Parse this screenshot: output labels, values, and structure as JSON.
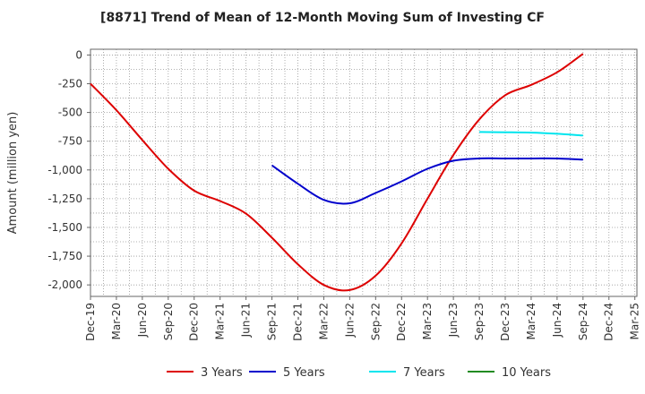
{
  "chart_data": {
    "type": "line",
    "title": "[8871]  Trend of Mean of 12-Month Moving Sum of Investing CF",
    "xlabel": "",
    "ylabel": "Amount (million yen)",
    "ylim": [
      -2100,
      50
    ],
    "y_ticks": [
      0,
      -250,
      -500,
      -750,
      -1000,
      -1250,
      -1500,
      -1750,
      -2000
    ],
    "y_tick_labels": [
      "0",
      "-250",
      "-500",
      "-750",
      "-1,000",
      "-1,250",
      "-1,500",
      "-1,750",
      "-2,000"
    ],
    "x_ticks": [
      "Dec-19",
      "Mar-20",
      "Jun-20",
      "Sep-20",
      "Dec-20",
      "Mar-21",
      "Jun-21",
      "Sep-21",
      "Dec-21",
      "Mar-22",
      "Jun-22",
      "Sep-22",
      "Dec-22",
      "Mar-23",
      "Jun-23",
      "Sep-23",
      "Dec-23",
      "Mar-24",
      "Jun-24",
      "Sep-24",
      "Dec-24",
      "Mar-25"
    ],
    "grid": true,
    "legend_position": "bottom",
    "series": [
      {
        "name": "3 Years",
        "color": "#dd0000",
        "x": [
          0,
          1,
          2,
          3,
          4,
          5,
          6,
          7,
          8,
          9,
          10,
          11,
          12,
          13,
          14,
          15,
          16,
          17,
          18,
          19
        ],
        "values": [
          -250,
          -480,
          -740,
          -990,
          -1180,
          -1270,
          -1380,
          -1590,
          -1820,
          -2000,
          -2045,
          -1920,
          -1640,
          -1250,
          -870,
          -560,
          -350,
          -260,
          -150,
          10
        ]
      },
      {
        "name": "5 Years",
        "color": "#0000cc",
        "x": [
          7,
          8,
          9,
          10,
          11,
          12,
          13,
          14,
          15,
          16,
          17,
          18,
          19
        ],
        "values": [
          -960,
          -1120,
          -1260,
          -1290,
          -1200,
          -1100,
          -990,
          -920,
          -900,
          -900,
          -900,
          -900,
          -910
        ]
      },
      {
        "name": "7 Years",
        "color": "#00e5ee",
        "x": [
          15,
          16,
          17,
          18,
          19
        ],
        "values": [
          -670,
          -672,
          -675,
          -685,
          -700
        ]
      },
      {
        "name": "10 Years",
        "color": "#228b22",
        "x": [],
        "values": []
      }
    ]
  }
}
